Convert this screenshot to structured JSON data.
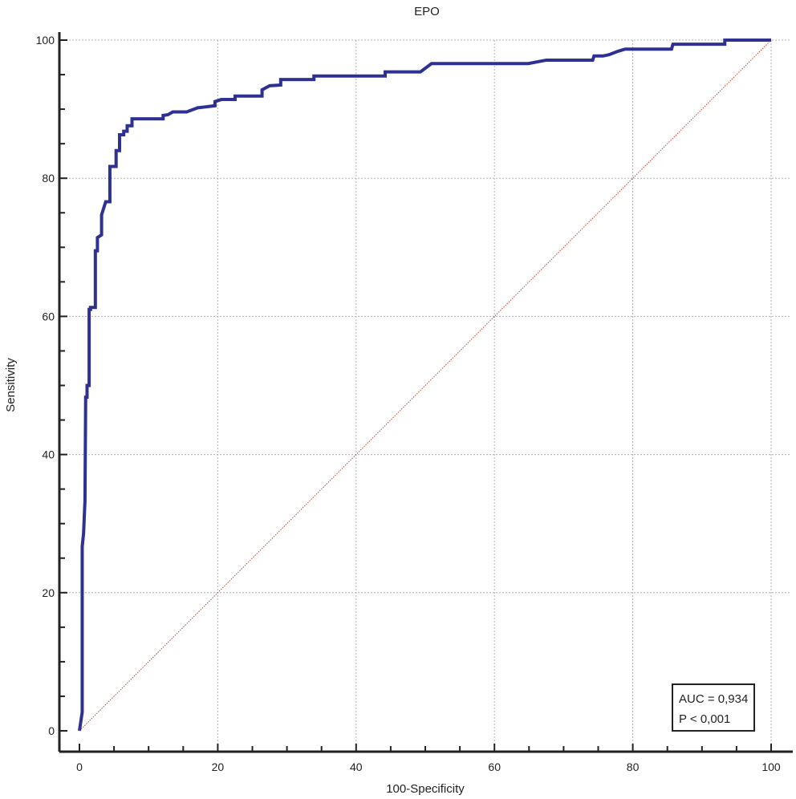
{
  "chart_data": {
    "type": "line",
    "title": "EPO",
    "xlabel": "100-Specificity",
    "ylabel": "Sensitivity",
    "xlim": [
      0,
      100
    ],
    "ylim": [
      0,
      100
    ],
    "xticks": [
      0,
      20,
      40,
      60,
      80,
      100
    ],
    "yticks": [
      0,
      20,
      40,
      60,
      80,
      100
    ],
    "grid": true,
    "legend_position": "bottom-right",
    "annotation": {
      "auc": "AUC = 0,934",
      "p": "P < 0,001"
    },
    "colors": {
      "roc": "#2e3192",
      "reference": "#b5473a",
      "grid": "#b0b0b0"
    },
    "series": [
      {
        "style": "roc",
        "x": [
          0,
          0.4,
          0.4,
          0.6,
          0.7,
          0.8,
          0.9,
          1.1,
          1.1,
          1.4,
          1.4,
          1.6,
          1.6,
          2.3,
          2.3,
          2.6,
          2.6,
          3.2,
          3.2,
          3.8,
          4.4,
          4.4,
          5.3,
          5.3,
          5.8,
          5.8,
          6.4,
          6.4,
          6.9,
          6.9,
          7.6,
          7.6,
          12.1,
          12.1,
          12.8,
          13.5,
          15.5,
          17.1,
          17.1,
          19.6,
          19.6,
          20.5,
          22.5,
          22.5,
          26.4,
          26.4,
          27.5,
          29.1,
          29.1,
          33.9,
          33.9,
          44.2,
          44.2,
          49.3,
          50.9,
          64.9,
          67.5,
          74.2,
          74.4,
          75.7,
          76.6,
          77.9,
          78.9,
          85.6,
          85.8,
          93.3,
          93.3,
          100
        ],
        "y": [
          0,
          2.7,
          26.7,
          28.6,
          31,
          33.3,
          48.3,
          48.3,
          50,
          50,
          61,
          61,
          61.3,
          61.3,
          69.5,
          69.5,
          71.4,
          71.8,
          74.7,
          76.6,
          76.6,
          81.7,
          81.7,
          84,
          84,
          86.3,
          86.3,
          86.8,
          86.8,
          87.6,
          87.6,
          88.6,
          88.6,
          89.1,
          89.2,
          89.6,
          89.6,
          90.2,
          90.2,
          90.5,
          91.1,
          91.4,
          91.4,
          91.9,
          91.9,
          92.8,
          93.4,
          93.5,
          94.3,
          94.3,
          94.8,
          94.8,
          95.4,
          95.4,
          96.6,
          96.6,
          97.1,
          97.1,
          97.7,
          97.7,
          97.9,
          98.4,
          98.7,
          98.7,
          99.4,
          99.4,
          100,
          100
        ]
      },
      {
        "style": "reference",
        "x": [
          0,
          100
        ],
        "y": [
          0,
          100
        ]
      }
    ]
  }
}
